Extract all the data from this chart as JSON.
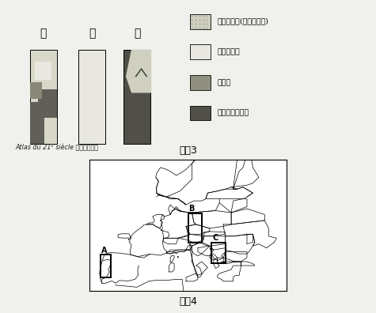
{
  "title_fig3": "図　3",
  "title_fig4": "図　4",
  "source_text": "Atlas du 21ᵉ siècle により作成。",
  "bar_labels": [
    "カ",
    "キ",
    "ク"
  ],
  "legend_items": [
    {
      "label": "イスラーム(イスラム教)",
      "color": "#d0d0c0"
    },
    {
      "label": "カトリック",
      "color": "#e8e8e0"
    },
    {
      "label": "正教会",
      "color": "#909080"
    },
    {
      "label": "プロテスタント",
      "color": "#505048"
    }
  ],
  "background_color": "#f0f0ec",
  "map_bg": "#ffffff",
  "bar_colors": {
    "ka": {
      "base": "#d0d0c0",
      "dark": "#606058",
      "light": "#e8e8e0"
    },
    "ki": {
      "base": "#e8e8e0"
    },
    "ku": {
      "base": "#505048",
      "light": "#d0d0c0"
    }
  }
}
